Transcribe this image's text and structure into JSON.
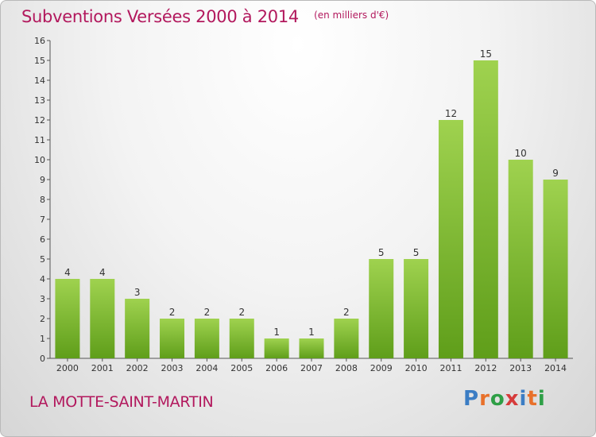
{
  "header": {
    "title": "Subventions Versées 2000 à 2014",
    "subtitle": "(en milliers d'€)"
  },
  "footer": {
    "commune": "LA MOTTE-SAINT-MARTIN",
    "logo_text": "Proxiti",
    "logo_colors": [
      "#3b7dc4",
      "#e8702a",
      "#2e9f46",
      "#d63b3b",
      "#3b7dc4",
      "#e8702a",
      "#2e9f46"
    ]
  },
  "colors": {
    "bar_light": "#9fd24f",
    "bar_dark": "#5f9e1a",
    "title": "#b2185d"
  },
  "chart_data": {
    "type": "bar",
    "title": "Subventions Versées 2000 à 2014",
    "subtitle": "(en milliers d'€)",
    "categories": [
      "2000",
      "2001",
      "2002",
      "2003",
      "2004",
      "2005",
      "2006",
      "2007",
      "2008",
      "2009",
      "2010",
      "2011",
      "2012",
      "2013",
      "2014"
    ],
    "values": [
      4,
      4,
      3,
      2,
      2,
      2,
      1,
      1,
      2,
      5,
      5,
      12,
      15,
      10,
      9
    ],
    "ylim": [
      0,
      16
    ],
    "yticks": [
      0,
      1,
      2,
      3,
      4,
      5,
      6,
      7,
      8,
      9,
      10,
      11,
      12,
      13,
      14,
      15,
      16
    ],
    "grid": false,
    "data_labels": true
  }
}
